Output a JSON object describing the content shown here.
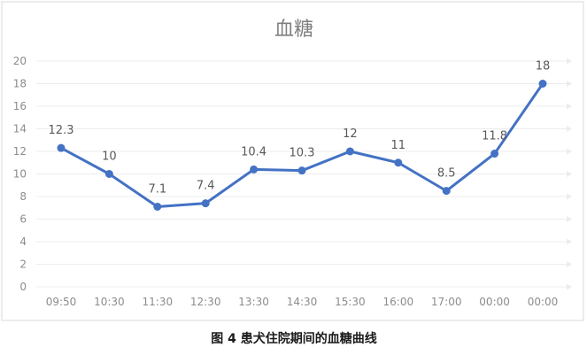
{
  "chart_data": {
    "type": "line",
    "title": "血糖",
    "xlabel": "",
    "ylabel": "",
    "categories": [
      "09:50",
      "10:30",
      "11:30",
      "12:30",
      "13:30",
      "14:30",
      "15:30",
      "16:00",
      "17:00",
      "00:00",
      "00:00"
    ],
    "series": [
      {
        "values": [
          12.3,
          10,
          7.1,
          7.4,
          10.4,
          10.3,
          12,
          11,
          8.5,
          11.8,
          18
        ],
        "labels": [
          "12.3",
          "10",
          "7.1",
          "7.4",
          "10.4",
          "10.3",
          "12",
          "11",
          "8.5",
          "11.8",
          "18"
        ],
        "color": "#4472c4"
      }
    ],
    "ylim": [
      0,
      20
    ],
    "yticks": [
      "0",
      "2",
      "4",
      "6",
      "8",
      "10",
      "12",
      "14",
      "16",
      "18",
      "20"
    ],
    "grid": true,
    "legend": "none",
    "caption": "图 4  患犬住院期间的血糖曲线"
  }
}
